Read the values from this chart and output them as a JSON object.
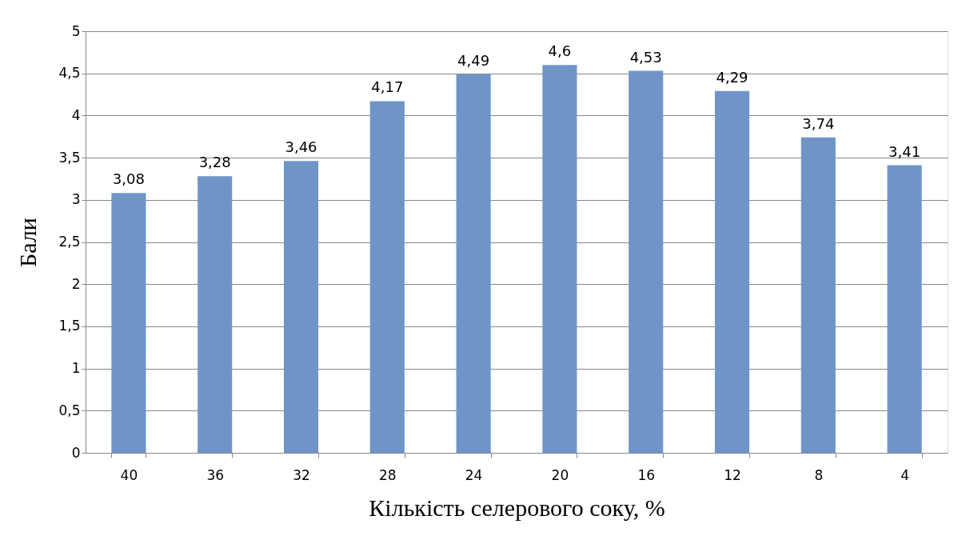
{
  "chart_data": {
    "type": "bar",
    "xlabel": "Кількість селерового соку, %",
    "ylabel": "Бали",
    "categories": [
      "40",
      "36",
      "32",
      "28",
      "24",
      "20",
      "16",
      "12",
      "8",
      "4"
    ],
    "values": [
      3.08,
      3.28,
      3.46,
      4.17,
      4.49,
      4.6,
      4.53,
      4.29,
      3.74,
      3.41
    ],
    "value_labels": [
      "3,08",
      "3,28",
      "3,46",
      "4,17",
      "4,49",
      "4,6",
      "4,53",
      "4,29",
      "3,74",
      "3,41"
    ],
    "color": "#6f95c8",
    "ylim": [
      0,
      5
    ],
    "yticks": [
      0,
      {
        "value": 0.5,
        "label": "0,5"
      },
      1,
      {
        "value": 1.5,
        "label": "1,5"
      },
      2,
      {
        "value": 2.5,
        "label": "2,5"
      },
      3,
      {
        "value": 3.5,
        "label": "3,5"
      },
      4,
      {
        "value": 4.5,
        "label": "4,5"
      },
      5
    ],
    "grid": "y"
  }
}
